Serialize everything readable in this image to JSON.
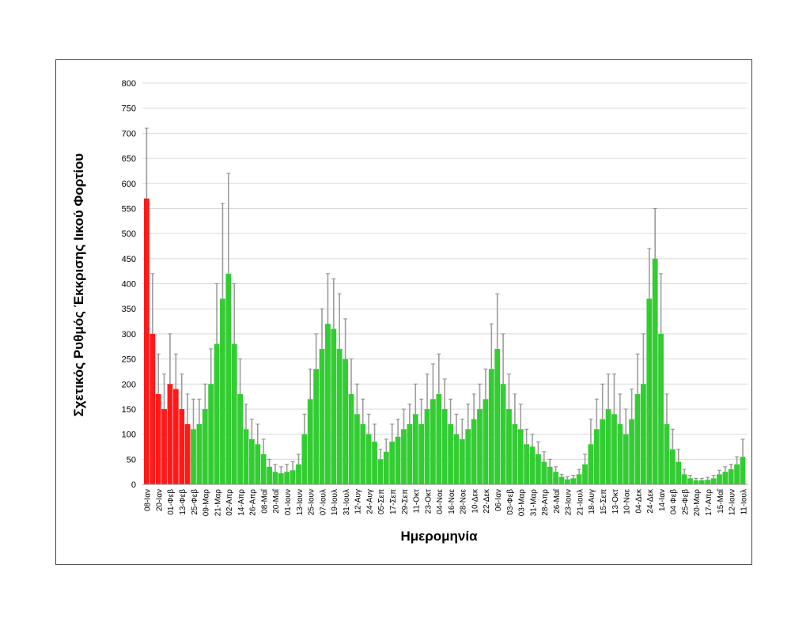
{
  "chart_data": {
    "type": "bar",
    "title": "",
    "xlabel": "Ημερομηνία",
    "ylabel": "Σχετικός Ρυθμός Έκκρισης Ιικού Φορτίου",
    "ylim": [
      0,
      800
    ],
    "yticks": [
      0,
      50,
      100,
      150,
      200,
      250,
      300,
      350,
      400,
      450,
      500,
      550,
      600,
      650,
      700,
      750,
      800
    ],
    "grid": true,
    "legend": "none",
    "tick_labels": [
      "08-Ιαν",
      "20-Ιαν",
      "01-Φεβ",
      "13-Φεβ",
      "25-Φεβ",
      "09-Μαρ",
      "21-Μαρ",
      "02-Απρ",
      "14-Απρ",
      "26-Απρ",
      "08-Μαΐ",
      "20-Μαΐ",
      "01-Ιουν",
      "13-Ιουν",
      "25-Ιουν",
      "07-Ιουλ",
      "19-Ιουλ",
      "31-Ιουλ",
      "12-Αυγ",
      "24-Αυγ",
      "05-Σεπ",
      "17-Σεπ",
      "29-Σεπ",
      "11-Οκτ",
      "23-Οκτ",
      "04-Νοε",
      "16-Νοε",
      "28-Νοε",
      "10-Δεκ",
      "22-Δεκ",
      "06-Ιαν",
      "03-Φεβ",
      "03-Μαρ",
      "31-Μαρ",
      "28-Απρ",
      "26-Μαΐ",
      "23-Ιουν",
      "21-Ιουλ",
      "18-Αυγ",
      "15-Σεπ",
      "13-Οκτ",
      "10-Νοε",
      "04-Δεκ",
      "24-Δεκ",
      "14-Ιαν",
      "04 Φεβ",
      "25-Φεβ",
      "20-Μαρ",
      "17-Απρ",
      "15-Μαΐ",
      "12-Ιουν",
      "11-Ιουλ"
    ],
    "values": [
      570,
      300,
      180,
      150,
      200,
      190,
      150,
      120,
      110,
      120,
      150,
      200,
      280,
      370,
      420,
      280,
      180,
      110,
      90,
      80,
      60,
      35,
      25,
      22,
      25,
      28,
      40,
      100,
      170,
      230,
      270,
      320,
      310,
      270,
      250,
      180,
      140,
      120,
      100,
      85,
      50,
      65,
      85,
      95,
      110,
      120,
      140,
      120,
      150,
      170,
      180,
      150,
      120,
      100,
      90,
      110,
      130,
      150,
      170,
      230,
      270,
      200,
      150,
      120,
      110,
      80,
      75,
      60,
      45,
      35,
      25,
      15,
      10,
      12,
      20,
      40,
      80,
      110,
      130,
      150,
      140,
      120,
      100,
      130,
      180,
      200,
      370,
      450,
      300,
      120,
      70,
      45,
      20,
      12,
      8,
      8,
      9,
      12,
      20,
      25,
      30,
      40,
      55
    ],
    "error_upper": [
      710,
      420,
      260,
      220,
      300,
      260,
      220,
      180,
      170,
      170,
      200,
      270,
      400,
      560,
      620,
      400,
      250,
      160,
      130,
      120,
      90,
      50,
      40,
      35,
      40,
      45,
      60,
      140,
      230,
      300,
      350,
      420,
      410,
      380,
      330,
      250,
      200,
      170,
      140,
      120,
      70,
      90,
      120,
      130,
      150,
      160,
      200,
      170,
      220,
      240,
      260,
      210,
      170,
      140,
      130,
      160,
      180,
      200,
      230,
      320,
      380,
      300,
      220,
      180,
      160,
      110,
      100,
      85,
      65,
      50,
      35,
      20,
      15,
      18,
      30,
      60,
      130,
      170,
      200,
      220,
      220,
      180,
      150,
      190,
      260,
      300,
      470,
      550,
      420,
      180,
      110,
      70,
      30,
      18,
      12,
      12,
      14,
      18,
      28,
      35,
      40,
      55,
      90
    ],
    "level_segments": [
      {
        "from": "08-Ιαν",
        "to": "08-Μαΐ",
        "level": "red"
      },
      {
        "from": "08-Μαΐ",
        "to": "13-Ιουν",
        "level": "orange"
      },
      {
        "from": "13-Ιουν",
        "to": "03-Μαρ",
        "level": "red"
      },
      {
        "from": "03-Μαρ",
        "to": "26-Μαΐ",
        "level": "orange"
      },
      {
        "from": "26-Μαΐ",
        "to": "21-Ιουλ",
        "level": "green"
      },
      {
        "from": "21-Ιουλ",
        "to": "24-Δεκ",
        "level": "orange"
      },
      {
        "from": "24-Δεκ",
        "to": "14-Ιαν",
        "level": "red"
      },
      {
        "from": "14-Ιαν",
        "to": "25-Φεβ",
        "level": "orange"
      },
      {
        "from": "25-Φεβ",
        "to": "11-Ιουλ",
        "level": "green"
      }
    ],
    "colors": {
      "red": "#ff1a1a",
      "orange": "#ffa51f",
      "green": "#33cc33",
      "error": "#8c8c8c",
      "grid": "#d9d9d9"
    }
  }
}
